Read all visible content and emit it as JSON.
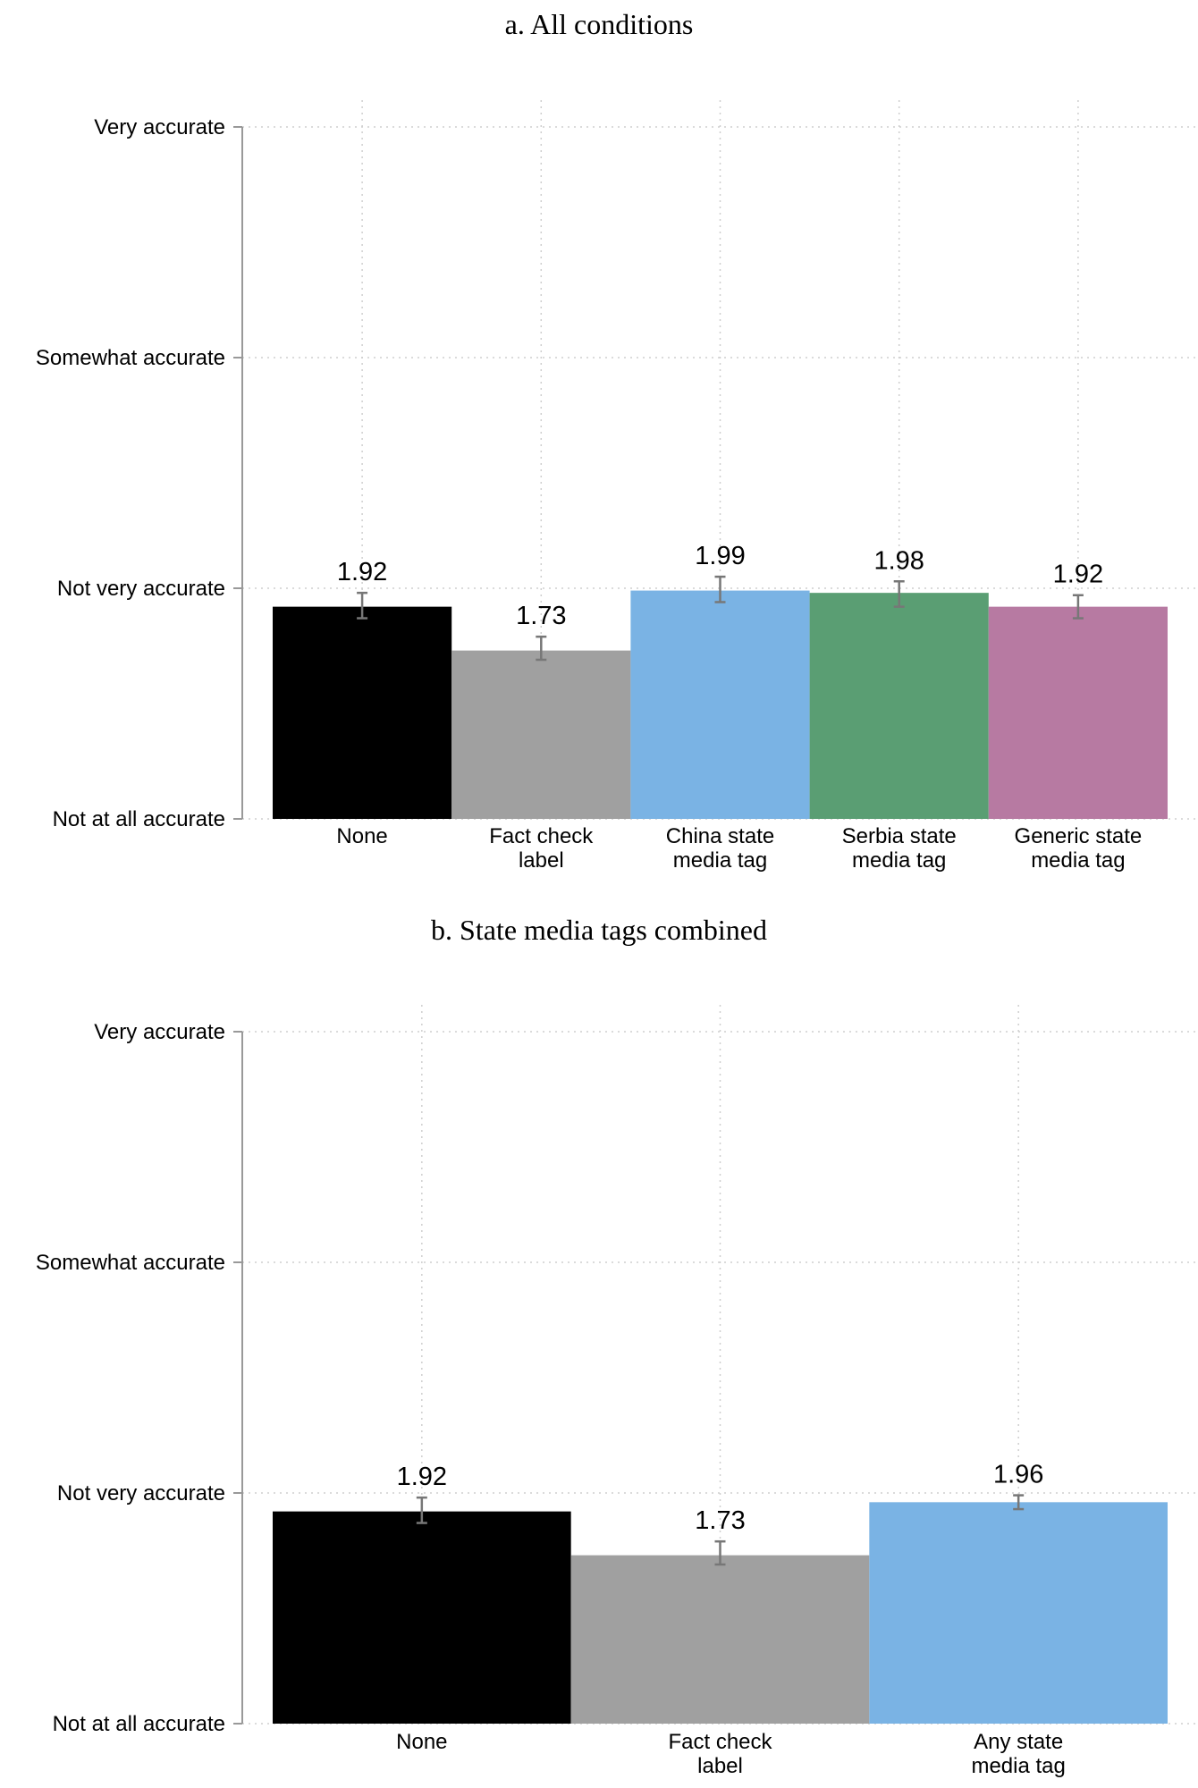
{
  "chart_data": [
    {
      "type": "bar",
      "title": "a. All conditions",
      "xlabel": "",
      "ylabel": "",
      "ylim": [
        1,
        4
      ],
      "yticks": [
        {
          "value": 4,
          "label": "Very accurate"
        },
        {
          "value": 3,
          "label": "Somewhat accurate"
        },
        {
          "value": 2,
          "label": "Not very accurate"
        },
        {
          "value": 1,
          "label": "Not at all accurate"
        }
      ],
      "grid": true,
      "categories": [
        [
          "None"
        ],
        [
          "Fact check",
          "label"
        ],
        [
          "China state",
          "media tag"
        ],
        [
          "Serbia state",
          "media tag"
        ],
        [
          "Generic state",
          "media tag"
        ]
      ],
      "values": [
        1.92,
        1.73,
        1.99,
        1.98,
        1.92
      ],
      "value_labels": [
        "1.92",
        "1.73",
        "1.99",
        "1.98",
        "1.92"
      ],
      "ci_low": [
        1.87,
        1.69,
        1.94,
        1.92,
        1.87
      ],
      "ci_high": [
        1.98,
        1.79,
        2.05,
        2.03,
        1.97
      ],
      "colors": [
        "#000000",
        "#a0a0a0",
        "#7ab3e4",
        "#5a9e73",
        "#b77aa2"
      ]
    },
    {
      "type": "bar",
      "title": "b. State media tags combined",
      "xlabel": "",
      "ylabel": "",
      "ylim": [
        1,
        4
      ],
      "yticks": [
        {
          "value": 4,
          "label": "Very accurate"
        },
        {
          "value": 3,
          "label": "Somewhat accurate"
        },
        {
          "value": 2,
          "label": "Not very accurate"
        },
        {
          "value": 1,
          "label": "Not at all accurate"
        }
      ],
      "grid": true,
      "categories": [
        [
          "None"
        ],
        [
          "Fact check",
          "label"
        ],
        [
          "Any state",
          "media tag"
        ]
      ],
      "values": [
        1.92,
        1.73,
        1.96
      ],
      "value_labels": [
        "1.92",
        "1.73",
        "1.96"
      ],
      "ci_low": [
        1.87,
        1.69,
        1.93
      ],
      "ci_high": [
        1.98,
        1.79,
        1.99
      ],
      "colors": [
        "#000000",
        "#a0a0a0",
        "#7ab3e4"
      ]
    }
  ]
}
